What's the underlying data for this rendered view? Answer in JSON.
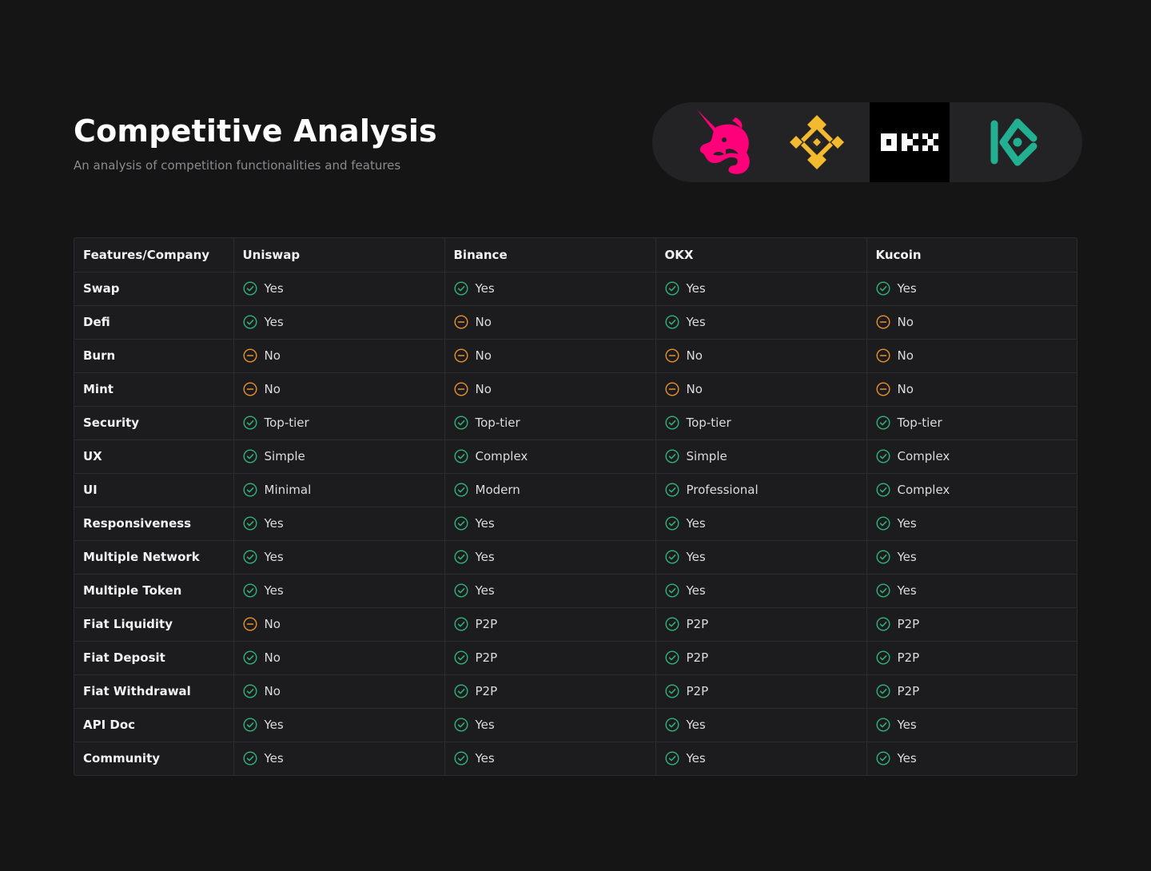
{
  "header": {
    "title": "Competitive Analysis",
    "subtitle": "An analysis of competition functionalities and features"
  },
  "logos": [
    {
      "name": "uniswap-logo",
      "color": "#ff007a"
    },
    {
      "name": "binance-logo",
      "color": "#f3ba2f"
    },
    {
      "name": "okx-logo",
      "text": "OKX",
      "color": "#ffffff"
    },
    {
      "name": "kucoin-logo",
      "color": "#23af91"
    }
  ],
  "colors": {
    "positive": "#2fb37b",
    "neutral": "#e8922c"
  },
  "table": {
    "headers": [
      "Features/Company",
      "Uniswap",
      "Binance",
      "OKX",
      "Kucoin"
    ],
    "rows": [
      {
        "feature": "Swap",
        "cells": [
          {
            "text": "Yes",
            "status": "positive"
          },
          {
            "text": "Yes",
            "status": "positive"
          },
          {
            "text": "Yes",
            "status": "positive"
          },
          {
            "text": "Yes",
            "status": "positive"
          }
        ]
      },
      {
        "feature": "Defi",
        "cells": [
          {
            "text": "Yes",
            "status": "positive"
          },
          {
            "text": "No",
            "status": "neutral"
          },
          {
            "text": "Yes",
            "status": "positive"
          },
          {
            "text": "No",
            "status": "neutral"
          }
        ]
      },
      {
        "feature": "Burn",
        "cells": [
          {
            "text": "No",
            "status": "neutral"
          },
          {
            "text": "No",
            "status": "neutral"
          },
          {
            "text": "No",
            "status": "neutral"
          },
          {
            "text": "No",
            "status": "neutral"
          }
        ]
      },
      {
        "feature": "Mint",
        "cells": [
          {
            "text": "No",
            "status": "neutral"
          },
          {
            "text": "No",
            "status": "neutral"
          },
          {
            "text": "No",
            "status": "neutral"
          },
          {
            "text": "No",
            "status": "neutral"
          }
        ]
      },
      {
        "feature": "Security",
        "cells": [
          {
            "text": "Top-tier",
            "status": "positive"
          },
          {
            "text": "Top-tier",
            "status": "positive"
          },
          {
            "text": "Top-tier",
            "status": "positive"
          },
          {
            "text": "Top-tier",
            "status": "positive"
          }
        ]
      },
      {
        "feature": "UX",
        "cells": [
          {
            "text": "Simple",
            "status": "positive"
          },
          {
            "text": "Complex",
            "status": "positive"
          },
          {
            "text": "Simple",
            "status": "positive"
          },
          {
            "text": "Complex",
            "status": "positive"
          }
        ]
      },
      {
        "feature": "UI",
        "cells": [
          {
            "text": "Minimal",
            "status": "positive"
          },
          {
            "text": "Modern",
            "status": "positive"
          },
          {
            "text": "Professional",
            "status": "positive"
          },
          {
            "text": "Complex",
            "status": "positive"
          }
        ]
      },
      {
        "feature": "Responsiveness",
        "cells": [
          {
            "text": "Yes",
            "status": "positive"
          },
          {
            "text": "Yes",
            "status": "positive"
          },
          {
            "text": "Yes",
            "status": "positive"
          },
          {
            "text": "Yes",
            "status": "positive"
          }
        ]
      },
      {
        "feature": "Multiple Network",
        "cells": [
          {
            "text": "Yes",
            "status": "positive"
          },
          {
            "text": "Yes",
            "status": "positive"
          },
          {
            "text": "Yes",
            "status": "positive"
          },
          {
            "text": "Yes",
            "status": "positive"
          }
        ]
      },
      {
        "feature": "Multiple Token",
        "cells": [
          {
            "text": "Yes",
            "status": "positive"
          },
          {
            "text": "Yes",
            "status": "positive"
          },
          {
            "text": "Yes",
            "status": "positive"
          },
          {
            "text": "Yes",
            "status": "positive"
          }
        ]
      },
      {
        "feature": "Fiat Liquidity",
        "cells": [
          {
            "text": "No",
            "status": "neutral"
          },
          {
            "text": "P2P",
            "status": "positive"
          },
          {
            "text": "P2P",
            "status": "positive"
          },
          {
            "text": "P2P",
            "status": "positive"
          }
        ]
      },
      {
        "feature": "Fiat Deposit",
        "cells": [
          {
            "text": "No",
            "status": "positive"
          },
          {
            "text": "P2P",
            "status": "positive"
          },
          {
            "text": "P2P",
            "status": "positive"
          },
          {
            "text": "P2P",
            "status": "positive"
          }
        ]
      },
      {
        "feature": "Fiat Withdrawal",
        "cells": [
          {
            "text": "No",
            "status": "positive"
          },
          {
            "text": "P2P",
            "status": "positive"
          },
          {
            "text": "P2P",
            "status": "positive"
          },
          {
            "text": "P2P",
            "status": "positive"
          }
        ]
      },
      {
        "feature": "API Doc",
        "cells": [
          {
            "text": "Yes",
            "status": "positive"
          },
          {
            "text": "Yes",
            "status": "positive"
          },
          {
            "text": "Yes",
            "status": "positive"
          },
          {
            "text": "Yes",
            "status": "positive"
          }
        ]
      },
      {
        "feature": "Community",
        "cells": [
          {
            "text": "Yes",
            "status": "positive"
          },
          {
            "text": "Yes",
            "status": "positive"
          },
          {
            "text": "Yes",
            "status": "positive"
          },
          {
            "text": "Yes",
            "status": "positive"
          }
        ]
      }
    ]
  }
}
